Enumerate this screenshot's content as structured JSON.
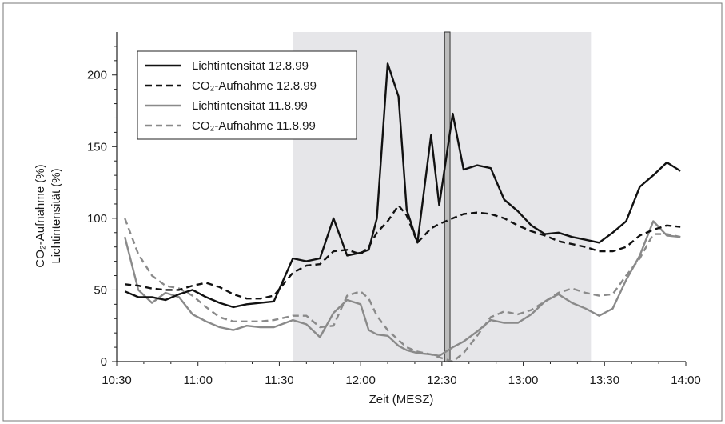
{
  "chart_data": {
    "type": "line",
    "xlabel": "Zeit (MESZ)",
    "ylabel": [
      "CO₂-Aufnahme (%)",
      "Lichtintensität (%)"
    ],
    "xlim": [
      "10:30",
      "14:00"
    ],
    "ylim": [
      0,
      230
    ],
    "x_ticks": [
      "10:30",
      "11:00",
      "11:30",
      "12:00",
      "12:30",
      "13:00",
      "13:30",
      "14:00"
    ],
    "y_ticks": [
      0,
      50,
      100,
      150,
      200
    ],
    "grid": false,
    "legend_position": "top-left",
    "shaded_interval": [
      "11:35",
      "13:25"
    ],
    "shaded_color": "#e6e6e9",
    "marker_interval": [
      "12:31",
      "12:33"
    ],
    "marker_color": "#bcbcbc",
    "series": [
      {
        "name": "Lichtintensität 12.8.99",
        "color": "#111111",
        "dash": "solid",
        "points": [
          [
            "10:33",
            49
          ],
          [
            "10:38",
            45
          ],
          [
            "10:43",
            45
          ],
          [
            "10:48",
            43
          ],
          [
            "10:53",
            47
          ],
          [
            "10:58",
            50
          ],
          [
            "11:03",
            45
          ],
          [
            "11:08",
            41
          ],
          [
            "11:13",
            38
          ],
          [
            "11:18",
            40
          ],
          [
            "11:23",
            41
          ],
          [
            "11:28",
            42
          ],
          [
            "11:35",
            72
          ],
          [
            "11:40",
            70
          ],
          [
            "11:45",
            72
          ],
          [
            "11:50",
            100
          ],
          [
            "11:55",
            74
          ],
          [
            "12:00",
            76
          ],
          [
            "12:03",
            78
          ],
          [
            "12:06",
            100
          ],
          [
            "12:10",
            208
          ],
          [
            "12:14",
            185
          ],
          [
            "12:17",
            106
          ],
          [
            "12:21",
            83
          ],
          [
            "12:26",
            158
          ],
          [
            "12:29",
            109
          ],
          [
            "12:34",
            173
          ],
          [
            "12:38",
            134
          ],
          [
            "12:43",
            137
          ],
          [
            "12:48",
            135
          ],
          [
            "12:53",
            113
          ],
          [
            "12:58",
            105
          ],
          [
            "13:03",
            95
          ],
          [
            "13:08",
            89
          ],
          [
            "13:13",
            90
          ],
          [
            "13:18",
            87
          ],
          [
            "13:23",
            85
          ],
          [
            "13:28",
            83
          ],
          [
            "13:33",
            90
          ],
          [
            "13:38",
            98
          ],
          [
            "13:43",
            122
          ],
          [
            "13:48",
            130
          ],
          [
            "13:53",
            139
          ],
          [
            "13:58",
            133
          ]
        ]
      },
      {
        "name": "CO₂-Aufnahme 12.8.99",
        "color": "#111111",
        "dash": "dashed",
        "points": [
          [
            "10:33",
            54
          ],
          [
            "10:38",
            53
          ],
          [
            "10:43",
            51
          ],
          [
            "10:48",
            50
          ],
          [
            "10:53",
            50
          ],
          [
            "10:58",
            53
          ],
          [
            "11:03",
            55
          ],
          [
            "11:08",
            52
          ],
          [
            "11:13",
            47
          ],
          [
            "11:18",
            44
          ],
          [
            "11:23",
            44
          ],
          [
            "11:28",
            46
          ],
          [
            "11:35",
            62
          ],
          [
            "11:40",
            67
          ],
          [
            "11:45",
            68
          ],
          [
            "11:50",
            77
          ],
          [
            "11:55",
            78
          ],
          [
            "12:00",
            75
          ],
          [
            "12:03",
            80
          ],
          [
            "12:06",
            90
          ],
          [
            "12:10",
            98
          ],
          [
            "12:14",
            109
          ],
          [
            "12:17",
            102
          ],
          [
            "12:21",
            83
          ],
          [
            "12:26",
            93
          ],
          [
            "12:29",
            96
          ],
          [
            "12:34",
            100
          ],
          [
            "12:38",
            103
          ],
          [
            "12:43",
            104
          ],
          [
            "12:48",
            103
          ],
          [
            "12:53",
            100
          ],
          [
            "12:58",
            95
          ],
          [
            "13:03",
            91
          ],
          [
            "13:08",
            88
          ],
          [
            "13:13",
            84
          ],
          [
            "13:18",
            82
          ],
          [
            "13:23",
            80
          ],
          [
            "13:28",
            77
          ],
          [
            "13:33",
            77
          ],
          [
            "13:38",
            80
          ],
          [
            "13:43",
            88
          ],
          [
            "13:48",
            92
          ],
          [
            "13:53",
            95
          ],
          [
            "13:58",
            94
          ]
        ]
      },
      {
        "name": "Lichtintensität 11.8.99",
        "color": "#8a8a8a",
        "dash": "solid",
        "points": [
          [
            "10:33",
            87
          ],
          [
            "10:38",
            50
          ],
          [
            "10:43",
            41
          ],
          [
            "10:48",
            48
          ],
          [
            "10:53",
            45
          ],
          [
            "10:58",
            33
          ],
          [
            "11:03",
            28
          ],
          [
            "11:08",
            24
          ],
          [
            "11:13",
            22
          ],
          [
            "11:18",
            25
          ],
          [
            "11:23",
            24
          ],
          [
            "11:28",
            24
          ],
          [
            "11:35",
            29
          ],
          [
            "11:40",
            26
          ],
          [
            "11:45",
            17
          ],
          [
            "11:50",
            34
          ],
          [
            "11:55",
            43
          ],
          [
            "12:00",
            40
          ],
          [
            "12:03",
            22
          ],
          [
            "12:06",
            19
          ],
          [
            "12:10",
            18
          ],
          [
            "12:14",
            11
          ],
          [
            "12:17",
            8
          ],
          [
            "12:21",
            6
          ],
          [
            "12:26",
            5
          ],
          [
            "12:29",
            4
          ],
          [
            "12:34",
            10
          ],
          [
            "12:38",
            14
          ],
          [
            "12:43",
            21
          ],
          [
            "12:48",
            29
          ],
          [
            "12:53",
            27
          ],
          [
            "12:58",
            27
          ],
          [
            "13:03",
            33
          ],
          [
            "13:08",
            42
          ],
          [
            "13:13",
            47
          ],
          [
            "13:18",
            41
          ],
          [
            "13:23",
            37
          ],
          [
            "13:28",
            32
          ],
          [
            "13:33",
            37
          ],
          [
            "13:38",
            57
          ],
          [
            "13:43",
            74
          ],
          [
            "13:48",
            98
          ],
          [
            "13:53",
            88
          ],
          [
            "13:58",
            87
          ]
        ]
      },
      {
        "name": "CO₂-Aufnahme 11.8.99",
        "color": "#8a8a8a",
        "dash": "dashed",
        "points": [
          [
            "10:33",
            100
          ],
          [
            "10:38",
            75
          ],
          [
            "10:43",
            60
          ],
          [
            "10:48",
            53
          ],
          [
            "10:53",
            51
          ],
          [
            "10:58",
            46
          ],
          [
            "11:03",
            38
          ],
          [
            "11:08",
            31
          ],
          [
            "11:13",
            28
          ],
          [
            "11:18",
            28
          ],
          [
            "11:23",
            28
          ],
          [
            "11:28",
            29
          ],
          [
            "11:35",
            32
          ],
          [
            "11:40",
            32
          ],
          [
            "11:45",
            24
          ],
          [
            "11:50",
            25
          ],
          [
            "11:55",
            46
          ],
          [
            "12:00",
            49
          ],
          [
            "12:03",
            44
          ],
          [
            "12:06",
            32
          ],
          [
            "12:10",
            22
          ],
          [
            "12:14",
            15
          ],
          [
            "12:17",
            10
          ],
          [
            "12:21",
            7
          ],
          [
            "12:26",
            5
          ],
          [
            "12:29",
            3
          ],
          [
            "12:34",
            0
          ],
          [
            "12:38",
            6
          ],
          [
            "12:43",
            18
          ],
          [
            "12:48",
            31
          ],
          [
            "12:53",
            35
          ],
          [
            "12:58",
            33
          ],
          [
            "13:03",
            36
          ],
          [
            "13:08",
            42
          ],
          [
            "13:13",
            48
          ],
          [
            "13:18",
            51
          ],
          [
            "13:23",
            48
          ],
          [
            "13:28",
            46
          ],
          [
            "13:33",
            47
          ],
          [
            "13:38",
            60
          ],
          [
            "13:43",
            72
          ],
          [
            "13:48",
            89
          ],
          [
            "13:53",
            89
          ],
          [
            "13:58",
            87
          ]
        ]
      }
    ]
  }
}
